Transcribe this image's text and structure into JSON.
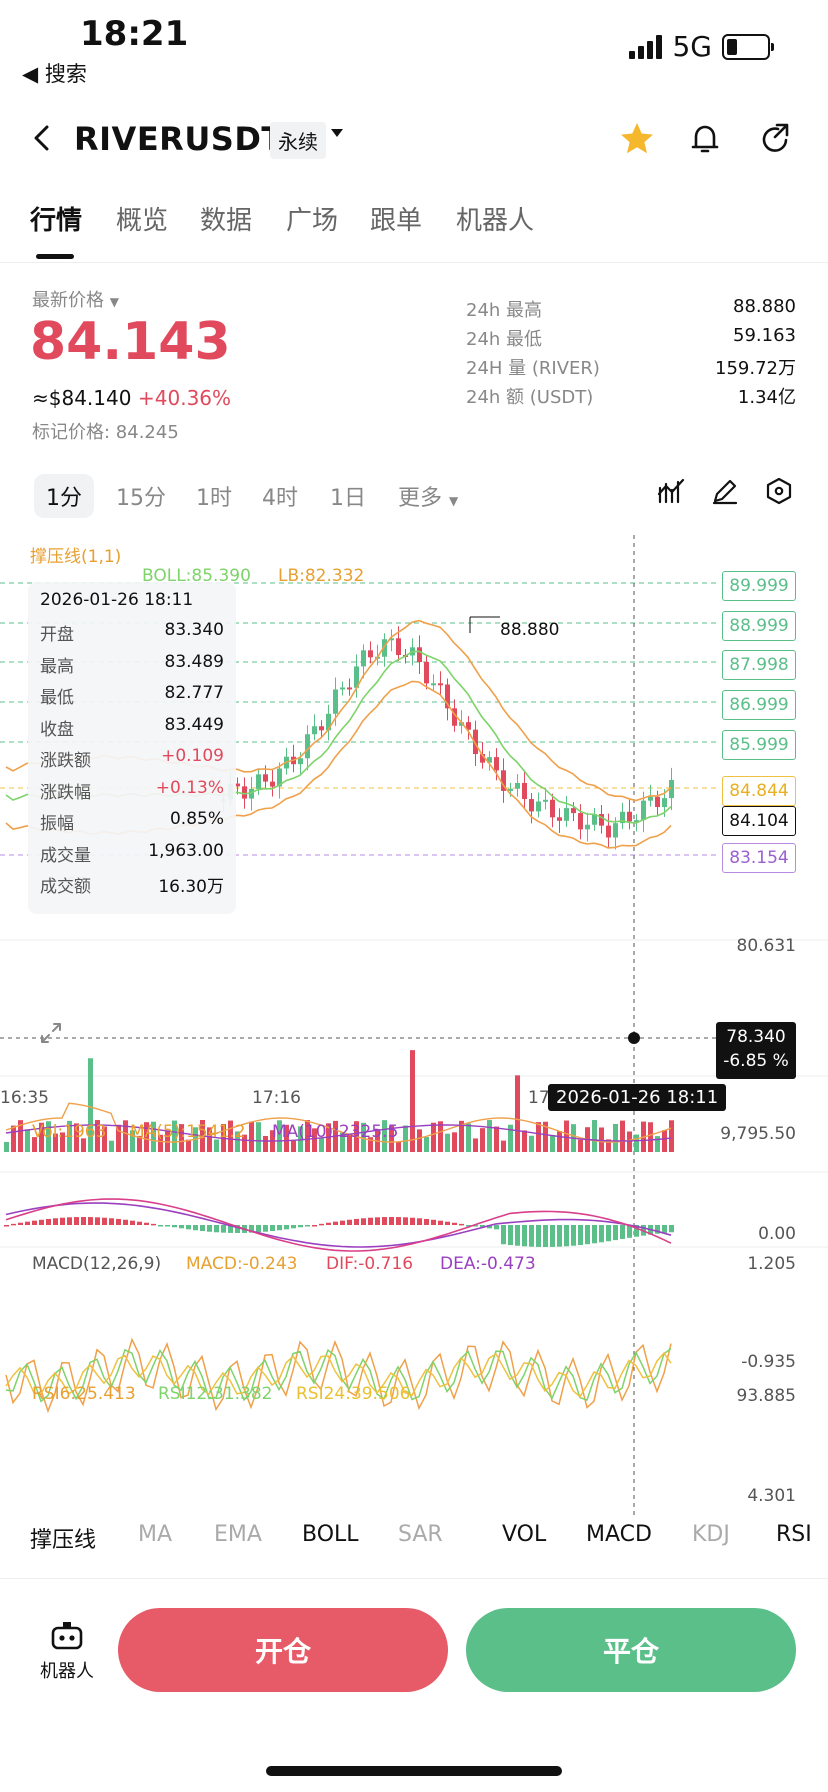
{
  "status": {
    "time": "18:21",
    "back": "◀ 搜索",
    "network": "5G"
  },
  "header": {
    "pair": "RIVERUSDT",
    "badge": "永续"
  },
  "tabs": [
    "行情",
    "概览",
    "数据",
    "广场",
    "跟单",
    "机器人"
  ],
  "ticker": {
    "latest_label": "最新价格",
    "price": "84.143",
    "usd": "≈$84.140",
    "change": "+40.36%",
    "mark": "标记价格: 84.245",
    "stats": [
      {
        "k": "24h  最高",
        "v": "88.880"
      },
      {
        "k": "24h  最低",
        "v": "59.163"
      },
      {
        "k": "24H  量 (RIVER)",
        "v": "159.72万"
      },
      {
        "k": "24h  额 (USDT)",
        "v": "1.34亿"
      }
    ]
  },
  "timeframes": [
    "1分",
    "15分",
    "1时",
    "4时",
    "1日",
    "更多"
  ],
  "chart": {
    "indicator_title": "撑压线(1,1)",
    "boll": "BOLL:85.390",
    "lb": "LB:82.332",
    "high_label": "88.880",
    "levels": [
      "89.999",
      "88.999",
      "87.998",
      "86.999",
      "85.999"
    ],
    "yellow_level": "84.844",
    "current": "84.104",
    "purple_level": "83.154",
    "axis_mid": "80.631",
    "cursor_price": "78.340",
    "cursor_pct": "-6.85 %",
    "x_labels": [
      "16:35",
      "17:16",
      "17"
    ],
    "cursor_time": "2026-01-26 18:11",
    "left_fragment": "00",
    "colors": {
      "up": "#5bbf8a",
      "down": "#e04a5c",
      "boll": "#f0a04a",
      "ma": "#7ed36a",
      "level": "#5bbf8a",
      "yellow": "#f0c040",
      "purple": "#b88be0"
    }
  },
  "tooltip": {
    "date": "2026-01-26 18:11",
    "rows": [
      {
        "k": "开盘",
        "v": "83.340",
        "c": "#111"
      },
      {
        "k": "最高",
        "v": "83.489",
        "c": "#111"
      },
      {
        "k": "最低",
        "v": "82.777",
        "c": "#111"
      },
      {
        "k": "收盘",
        "v": "83.449",
        "c": "#111"
      },
      {
        "k": "涨跌额",
        "v": "+0.109",
        "c": "#e04a5c"
      },
      {
        "k": "涨跌幅",
        "v": "+0.13%",
        "c": "#e04a5c"
      },
      {
        "k": "振幅",
        "v": "0.85%",
        "c": "#111"
      },
      {
        "k": "成交量",
        "v": "1,963.00",
        "c": "#111"
      },
      {
        "k": "成交额",
        "v": "16.30万",
        "c": "#111"
      }
    ]
  },
  "volume": {
    "vol": "Vol:1963",
    "ma5": "MA(5):1541.2",
    "ma10": "MA(10):2325.5",
    "max": "9,795.50",
    "min": "0.00"
  },
  "macd": {
    "title": "MACD(12,26,9)",
    "macd": "MACD:-0.243",
    "dif": "DIF:-0.716",
    "dea": "DEA:-0.473",
    "max": "1.205",
    "min": "-0.935"
  },
  "rsi": {
    "r6": "RSI6:25.413",
    "r12": "RSI12:31.382",
    "r24": "RSI24:39.506",
    "max": "93.885",
    "min": "4.301"
  },
  "indicators": [
    {
      "label": "撑压线",
      "on": true
    },
    {
      "label": "MA",
      "on": false
    },
    {
      "label": "EMA",
      "on": false
    },
    {
      "label": "BOLL",
      "on": true
    },
    {
      "label": "SAR",
      "on": false
    },
    {
      "label": "VOL",
      "on": true
    },
    {
      "label": "MACD",
      "on": true
    },
    {
      "label": "KDJ",
      "on": false
    },
    {
      "label": "RSI",
      "on": true
    }
  ],
  "bottom": {
    "robot": "机器人",
    "open": "开仓",
    "close": "平仓",
    "open_color": "#e65b67",
    "close_color": "#5bbf8a"
  }
}
